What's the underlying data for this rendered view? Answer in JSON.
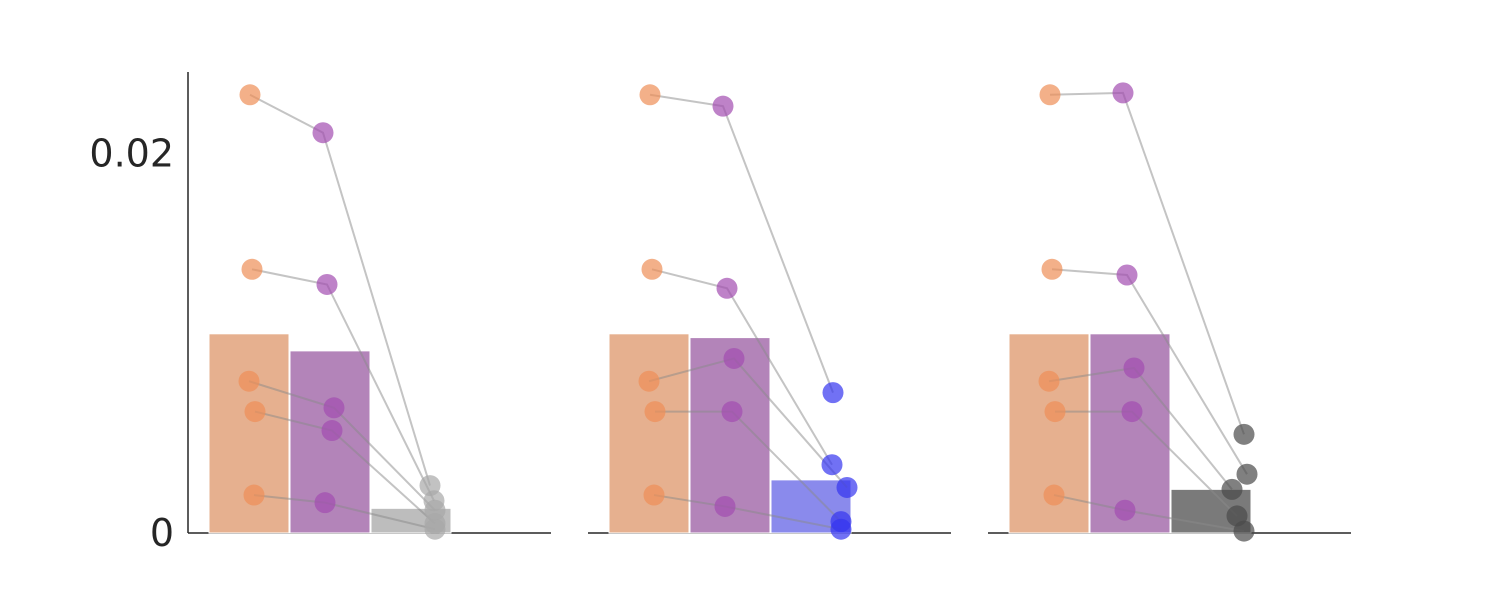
{
  "chart_data": {
    "type": "bar",
    "title": "",
    "ylabel": "",
    "ylim": [
      0,
      0.0243
    ],
    "yticks": [
      {
        "value": 0,
        "label": "0"
      },
      {
        "value": 0.02,
        "label": "0.02"
      }
    ],
    "grid": false,
    "legend": "none",
    "panels": [
      {
        "bars": [
          {
            "value": 0.0105,
            "color": "#E6B08F"
          },
          {
            "value": 0.0096,
            "color": "#B384B9"
          },
          {
            "value": 0.0013,
            "color": "#BDBDBD"
          }
        ],
        "point_colors": [
          "#EE8F57",
          "#A24DB0",
          "#A8A8A8"
        ],
        "subjects": [
          [
            0.0231,
            0.0211,
            0.0025
          ],
          [
            0.0139,
            0.0131,
            0.0017
          ],
          [
            0.008,
            0.0066,
            0.0012
          ],
          [
            0.0064,
            0.0054,
            0.0005
          ],
          [
            0.002,
            0.0016,
            0.0002
          ]
        ]
      },
      {
        "bars": [
          {
            "value": 0.0105,
            "color": "#E6B08F"
          },
          {
            "value": 0.0103,
            "color": "#B384B9"
          },
          {
            "value": 0.0028,
            "color": "#8A8AEC"
          }
        ],
        "point_colors": [
          "#EE8F57",
          "#A24DB0",
          "#3535F0"
        ],
        "subjects": [
          [
            0.0231,
            0.0225,
            0.0074
          ],
          [
            0.0139,
            0.0129,
            0.0036
          ],
          [
            0.008,
            0.0092,
            0.0024
          ],
          [
            0.0064,
            0.0064,
            0.0006
          ],
          [
            0.002,
            0.0014,
            0.0002
          ]
        ]
      },
      {
        "bars": [
          {
            "value": 0.0105,
            "color": "#E6B08F"
          },
          {
            "value": 0.0105,
            "color": "#B384B9"
          },
          {
            "value": 0.0023,
            "color": "#7A7A7A"
          }
        ],
        "point_colors": [
          "#EE8F57",
          "#A24DB0",
          "#4A4A4A"
        ],
        "subjects": [
          [
            0.0231,
            0.0232,
            0.0052
          ],
          [
            0.0139,
            0.0136,
            0.0031
          ],
          [
            0.008,
            0.0087,
            0.0023
          ],
          [
            0.0064,
            0.0064,
            0.0009
          ],
          [
            0.002,
            0.0012,
            0.0001
          ]
        ]
      }
    ]
  }
}
